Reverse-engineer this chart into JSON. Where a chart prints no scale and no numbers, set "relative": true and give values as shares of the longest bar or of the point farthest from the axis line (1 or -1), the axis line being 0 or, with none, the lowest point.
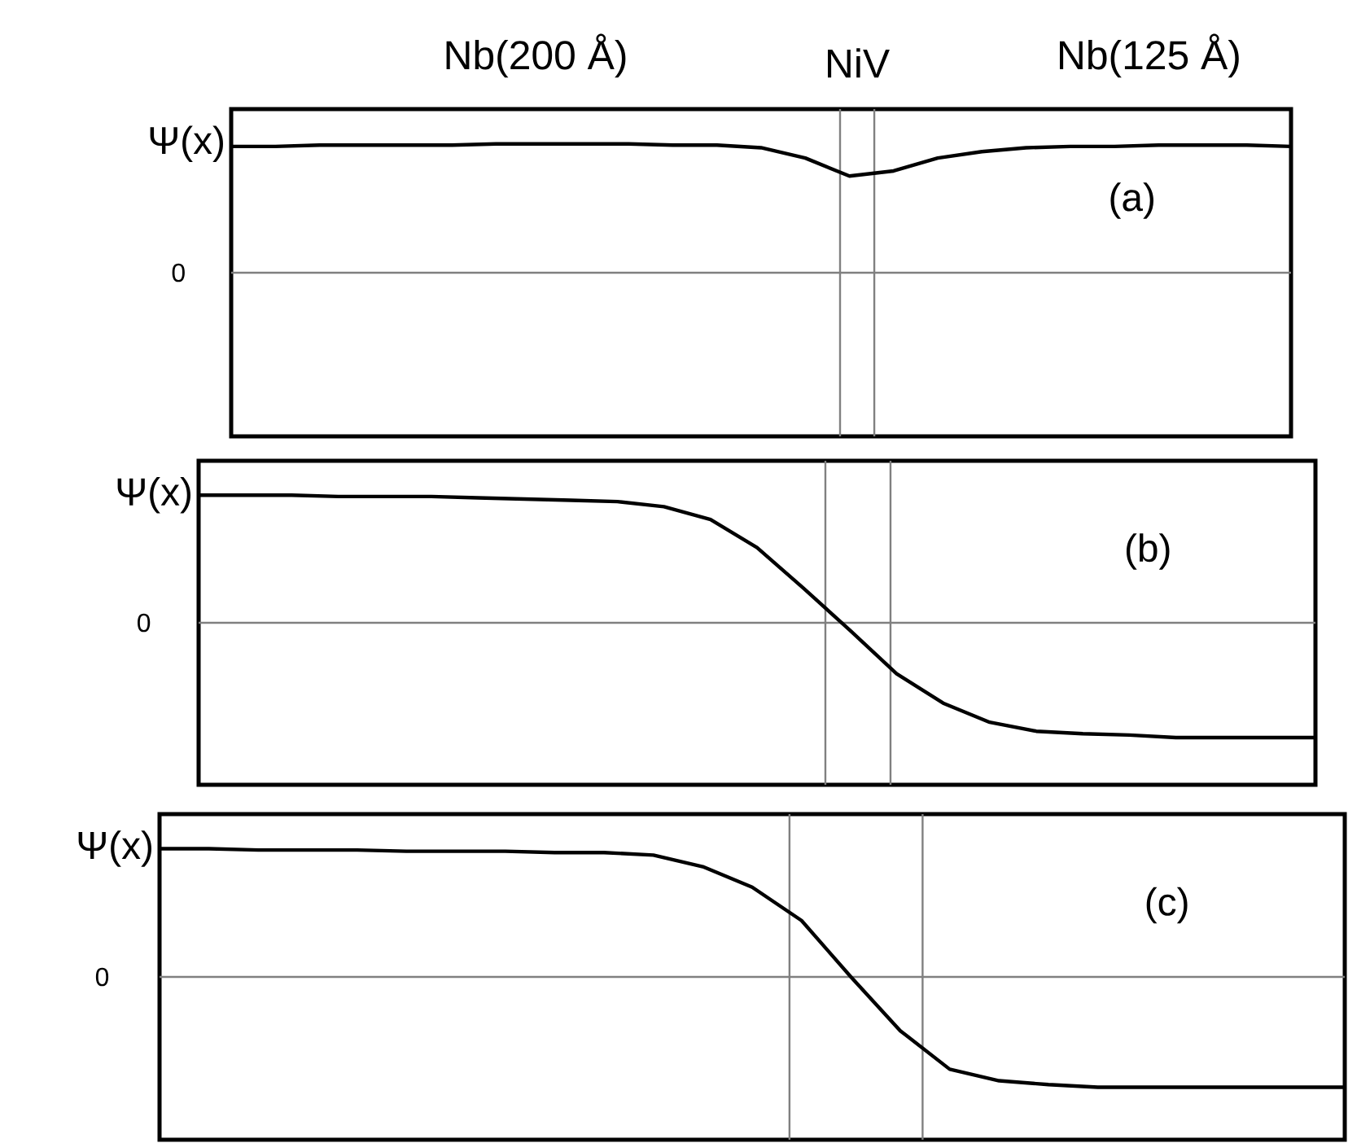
{
  "chart_data": [
    {
      "type": "line",
      "title": "(a)",
      "ylabel": "Ψ(x)",
      "relative": true,
      "color": "#000000",
      "categories": [
        null,
        null,
        null,
        null,
        null,
        null,
        null,
        null,
        null,
        null,
        null,
        null,
        null,
        null,
        null,
        null,
        null,
        null,
        null,
        null,
        null,
        null,
        null,
        null,
        null
      ],
      "values": [
        0.98,
        0.98,
        0.99,
        0.99,
        0.99,
        0.99,
        1,
        1,
        1,
        1,
        0.99,
        0.99,
        0.97,
        0.89,
        0.75,
        0.79,
        0.89,
        0.94,
        0.97,
        0.98,
        0.98,
        0.99,
        0.99,
        0.99,
        0.98
      ],
      "annotations": [
        "Nb(200 Å)",
        "NiV",
        "Nb(125 Å)",
        "0"
      ]
    },
    {
      "type": "line",
      "title": "(b)",
      "ylabel": "Ψ(x)",
      "relative": true,
      "color": "#000000",
      "categories": [
        null,
        null,
        null,
        null,
        null,
        null,
        null,
        null,
        null,
        null,
        null,
        null,
        null,
        null,
        null,
        null,
        null,
        null,
        null,
        null,
        null,
        null,
        null,
        null,
        null
      ],
      "values": [
        1,
        1,
        1,
        0.99,
        0.99,
        0.99,
        0.98,
        0.97,
        0.96,
        0.95,
        0.91,
        0.81,
        0.59,
        0.27,
        -0.06,
        -0.4,
        -0.63,
        -0.78,
        -0.85,
        -0.87,
        -0.88,
        -0.9,
        -0.9,
        -0.9,
        -0.9
      ],
      "ref_lines": [
        {
          "axis": "y",
          "value": 0,
          "color": "#808080"
        }
      ],
      "annotations": [
        "0"
      ]
    },
    {
      "type": "line",
      "title": "(c)",
      "ylabel": "Ψ(x)",
      "relative": true,
      "color": "#000000",
      "categories": [
        null,
        null,
        null,
        null,
        null,
        null,
        null,
        null,
        null,
        null,
        null,
        null,
        null,
        null,
        null,
        null,
        null,
        null,
        null,
        null,
        null,
        null,
        null,
        null,
        null
      ],
      "values": [
        1,
        1,
        0.99,
        0.99,
        0.99,
        0.98,
        0.98,
        0.98,
        0.97,
        0.97,
        0.95,
        0.86,
        0.7,
        0.44,
        0,
        -0.42,
        -0.72,
        -0.81,
        -0.84,
        -0.86,
        -0.86,
        -0.86,
        -0.86,
        -0.86,
        -0.86
      ],
      "ref_lines": [
        {
          "axis": "y",
          "value": 0,
          "color": "#808080"
        }
      ],
      "annotations": [
        "0"
      ]
    }
  ]
}
